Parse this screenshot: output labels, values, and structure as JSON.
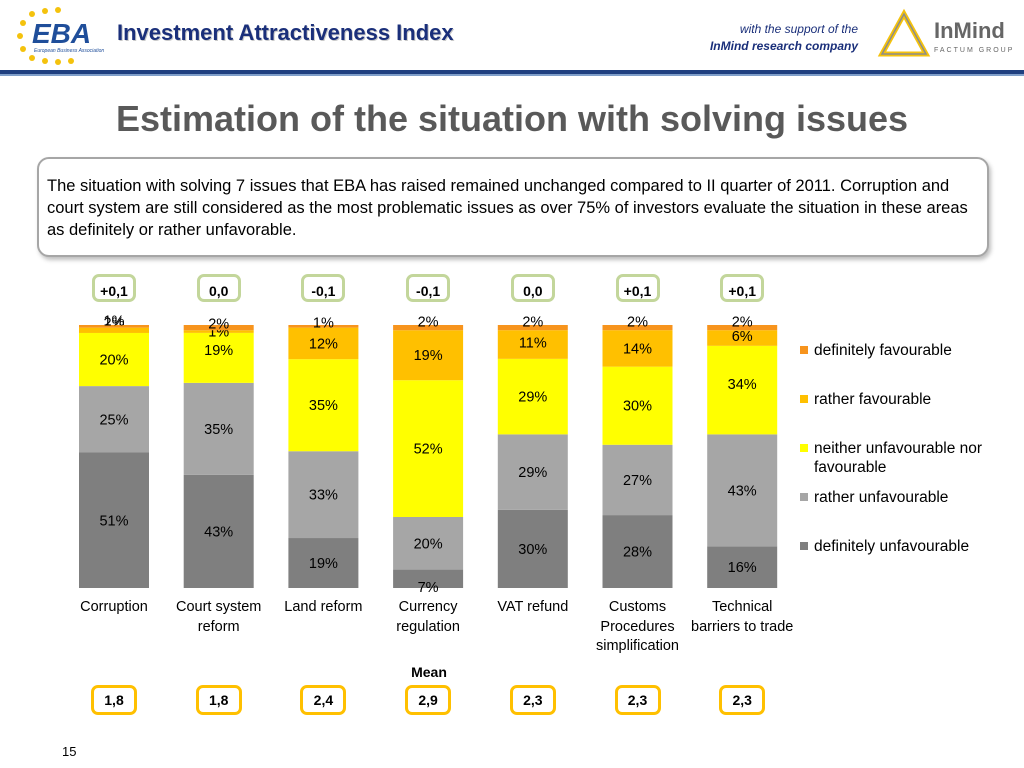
{
  "header": {
    "logo_eba": "EBA",
    "logo_eba_sub": "European Business Association",
    "title": "Investment Attractiveness Index",
    "support_line1": "with the support of the",
    "support_line2": "InMind research company",
    "logo_inmind": "InMind",
    "logo_inmind_sub": "FACTUM GROUP"
  },
  "page_title": "Estimation of the situation with solving issues",
  "summary": "The situation with solving 7 issues that EBA has raised remained unchanged compared to II quarter of 2011.  Corruption and court system are still considered as the most problematic issues as over 75% of investors evaluate the situation in these areas as definitely or rather unfavorable.",
  "mean_label": "Mean",
  "slide_number": "15",
  "colors": {
    "definitely_favourable": "#f7941d",
    "rather_favourable": "#ffc000",
    "neither": "#ffff00",
    "rather_unfavourable": "#a6a6a6",
    "definitely_unfavourable": "#7f7f7f",
    "title_blue": "#1a2f7a"
  },
  "chart_data": {
    "type": "bar",
    "stacked": true,
    "normalized": true,
    "categories": [
      "Corruption",
      "Court system reform",
      "Land reform",
      "Currency regulation",
      "VAT refund",
      "Customs Procedures simplification",
      "Technical barriers to trade"
    ],
    "series": [
      {
        "name": "definitely unfavourable",
        "values": [
          51,
          43,
          19,
          7,
          30,
          28,
          16
        ]
      },
      {
        "name": "rather unfavourable",
        "values": [
          25,
          35,
          33,
          20,
          29,
          27,
          43
        ]
      },
      {
        "name": "neither unfavourable nor favourable",
        "values": [
          20,
          19,
          35,
          52,
          29,
          30,
          34
        ]
      },
      {
        "name": "rather favourable",
        "values": [
          2,
          1,
          12,
          19,
          11,
          14,
          6
        ]
      },
      {
        "name": "definitely favourable",
        "values": [
          1,
          2,
          1,
          2,
          2,
          2,
          2
        ]
      }
    ],
    "changes": [
      "+0,1",
      "0,0",
      "-0,1",
      "-0,1",
      "0,0",
      "+0,1",
      "+0,1"
    ],
    "means": [
      "1,8",
      "1,8",
      "2,4",
      "2,9",
      "2,3",
      "2,3",
      "2,3"
    ],
    "legend_position": "right",
    "grid": false
  }
}
